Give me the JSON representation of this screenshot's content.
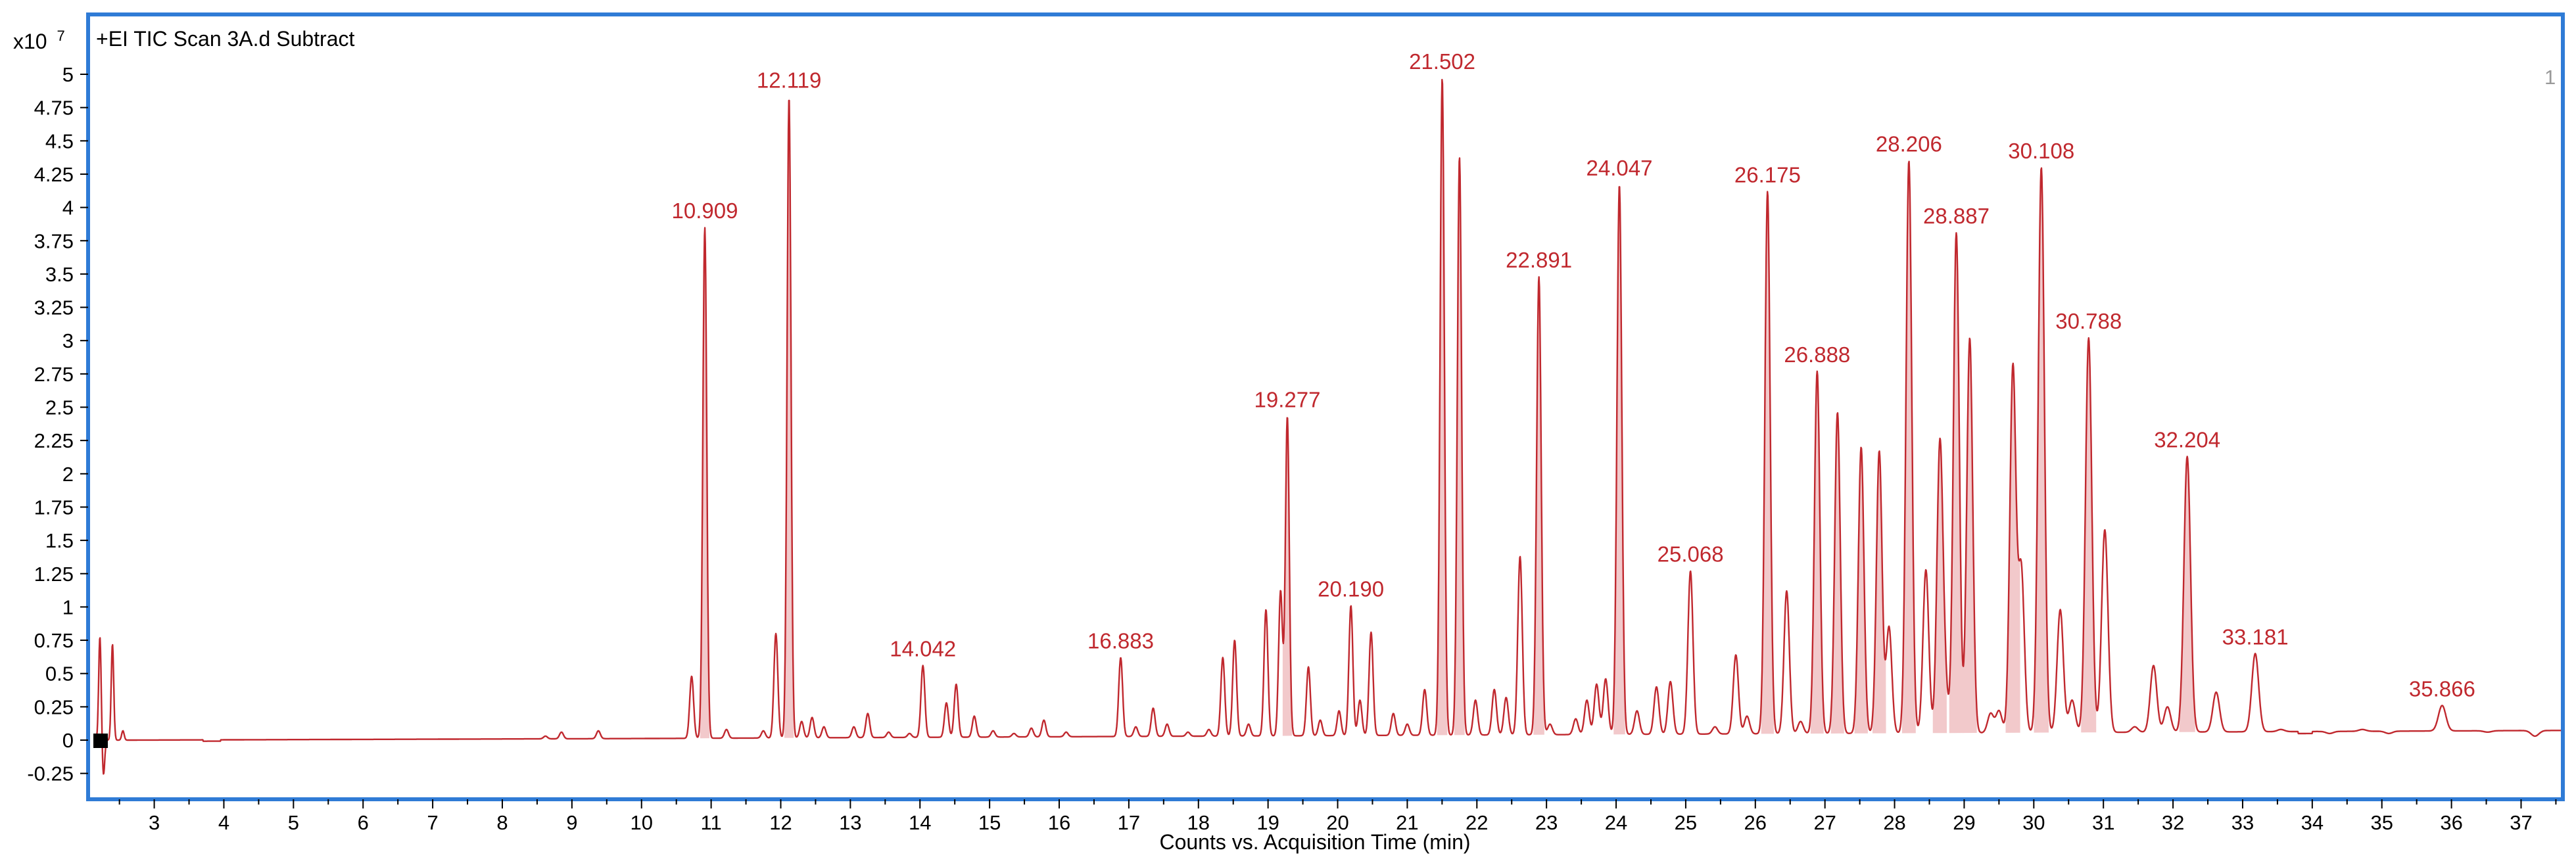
{
  "chart_data": {
    "type": "line",
    "title": "+EI TIC Scan 3A.d  Subtract",
    "xlabel": "Counts vs. Acquisition Time (min)",
    "ylabel_multiplier": "x10",
    "ylabel_exponent": "7",
    "panel_number": "1",
    "xlim": [
      2.05,
      37.6
    ],
    "ylim": [
      -0.3,
      5.1
    ],
    "x_ticks": [
      "3",
      "4",
      "5",
      "6",
      "7",
      "8",
      "9",
      "10",
      "11",
      "12",
      "13",
      "14",
      "15",
      "16",
      "17",
      "18",
      "19",
      "20",
      "21",
      "22",
      "23",
      "24",
      "25",
      "26",
      "27",
      "28",
      "29",
      "30",
      "31",
      "32",
      "33",
      "34",
      "35",
      "36",
      "37"
    ],
    "y_ticks": [
      "5",
      "4.75",
      "4.5",
      "4.25",
      "4",
      "3.75",
      "3.5",
      "3.25",
      "3",
      "2.75",
      "2.5",
      "2.25",
      "2",
      "1.75",
      "1.5",
      "1.25",
      "1",
      "0.75",
      "0.5",
      "0.25",
      "0",
      "-0.25"
    ],
    "colors": {
      "trace": "#c0282e",
      "fill": "#f2c9cb",
      "frame": "#2f7bd6"
    },
    "peak_labels": [
      {
        "x": 10.909,
        "y": 3.85,
        "text": "10.909"
      },
      {
        "x": 12.119,
        "y": 4.83,
        "text": "12.119"
      },
      {
        "x": 14.042,
        "y": 0.56,
        "text": "14.042"
      },
      {
        "x": 16.883,
        "y": 0.62,
        "text": "16.883"
      },
      {
        "x": 19.277,
        "y": 2.43,
        "text": "19.277"
      },
      {
        "x": 20.19,
        "y": 1.01,
        "text": "20.190"
      },
      {
        "x": 21.502,
        "y": 4.97,
        "text": "21.502"
      },
      {
        "x": 22.891,
        "y": 3.48,
        "text": "22.891"
      },
      {
        "x": 24.047,
        "y": 4.17,
        "text": "24.047"
      },
      {
        "x": 25.068,
        "y": 1.27,
        "text": "25.068"
      },
      {
        "x": 26.175,
        "y": 4.12,
        "text": "26.175"
      },
      {
        "x": 26.888,
        "y": 2.77,
        "text": "26.888"
      },
      {
        "x": 28.206,
        "y": 4.35,
        "text": "28.206"
      },
      {
        "x": 28.887,
        "y": 3.81,
        "text": "28.887"
      },
      {
        "x": 30.108,
        "y": 4.3,
        "text": "30.108"
      },
      {
        "x": 30.788,
        "y": 3.02,
        "text": "30.788"
      },
      {
        "x": 32.204,
        "y": 2.13,
        "text": "32.204"
      },
      {
        "x": 33.181,
        "y": 0.65,
        "text": "33.181"
      },
      {
        "x": 35.866,
        "y": 0.26,
        "text": "35.866"
      }
    ],
    "peaks": [
      {
        "x": 2.22,
        "y": 0.78
      },
      {
        "x": 2.27,
        "y": -0.27
      },
      {
        "x": 2.4,
        "y": 0.72
      },
      {
        "x": 2.55,
        "y": 0.07
      },
      {
        "x": 8.62,
        "y": 0.03
      },
      {
        "x": 8.85,
        "y": 0.06
      },
      {
        "x": 9.38,
        "y": 0.07
      },
      {
        "x": 10.72,
        "y": 0.48
      },
      {
        "x": 10.909,
        "y": 3.85
      },
      {
        "x": 11.22,
        "y": 0.08
      },
      {
        "x": 11.75,
        "y": 0.07
      },
      {
        "x": 11.93,
        "y": 0.8
      },
      {
        "x": 12.119,
        "y": 4.83
      },
      {
        "x": 12.3,
        "y": 0.14
      },
      {
        "x": 12.45,
        "y": 0.17
      },
      {
        "x": 12.62,
        "y": 0.1
      },
      {
        "x": 13.05,
        "y": 0.1
      },
      {
        "x": 13.25,
        "y": 0.2
      },
      {
        "x": 13.55,
        "y": 0.06
      },
      {
        "x": 13.85,
        "y": 0.05
      },
      {
        "x": 14.042,
        "y": 0.56
      },
      {
        "x": 14.38,
        "y": 0.28
      },
      {
        "x": 14.52,
        "y": 0.42
      },
      {
        "x": 14.78,
        "y": 0.18
      },
      {
        "x": 15.05,
        "y": 0.07
      },
      {
        "x": 15.35,
        "y": 0.05
      },
      {
        "x": 15.6,
        "y": 0.09
      },
      {
        "x": 15.78,
        "y": 0.15
      },
      {
        "x": 16.1,
        "y": 0.06
      },
      {
        "x": 16.883,
        "y": 0.62
      },
      {
        "x": 17.1,
        "y": 0.1
      },
      {
        "x": 17.35,
        "y": 0.24
      },
      {
        "x": 17.55,
        "y": 0.12
      },
      {
        "x": 17.85,
        "y": 0.06
      },
      {
        "x": 18.15,
        "y": 0.08
      },
      {
        "x": 18.35,
        "y": 0.62
      },
      {
        "x": 18.52,
        "y": 0.75
      },
      {
        "x": 18.72,
        "y": 0.12
      },
      {
        "x": 18.97,
        "y": 0.98
      },
      {
        "x": 19.18,
        "y": 1.12
      },
      {
        "x": 19.277,
        "y": 2.43
      },
      {
        "x": 19.58,
        "y": 0.55
      },
      {
        "x": 19.75,
        "y": 0.15
      },
      {
        "x": 20.02,
        "y": 0.22
      },
      {
        "x": 20.19,
        "y": 1.01
      },
      {
        "x": 20.32,
        "y": 0.3
      },
      {
        "x": 20.48,
        "y": 0.81
      },
      {
        "x": 20.8,
        "y": 0.2
      },
      {
        "x": 21.0,
        "y": 0.12
      },
      {
        "x": 21.25,
        "y": 0.38
      },
      {
        "x": 21.502,
        "y": 4.97
      },
      {
        "x": 21.75,
        "y": 4.38
      },
      {
        "x": 21.98,
        "y": 0.3
      },
      {
        "x": 22.25,
        "y": 0.38
      },
      {
        "x": 22.42,
        "y": 0.32
      },
      {
        "x": 22.62,
        "y": 1.38
      },
      {
        "x": 22.891,
        "y": 3.48
      },
      {
        "x": 23.05,
        "y": 0.12
      },
      {
        "x": 23.42,
        "y": 0.16
      },
      {
        "x": 23.58,
        "y": 0.3
      },
      {
        "x": 23.72,
        "y": 0.42
      },
      {
        "x": 23.85,
        "y": 0.46
      },
      {
        "x": 24.047,
        "y": 4.17
      },
      {
        "x": 24.3,
        "y": 0.22
      },
      {
        "x": 24.58,
        "y": 0.4
      },
      {
        "x": 24.78,
        "y": 0.44
      },
      {
        "x": 25.068,
        "y": 1.27
      },
      {
        "x": 25.42,
        "y": 0.1
      },
      {
        "x": 25.72,
        "y": 0.64
      },
      {
        "x": 25.88,
        "y": 0.18
      },
      {
        "x": 26.175,
        "y": 4.12
      },
      {
        "x": 26.45,
        "y": 1.12
      },
      {
        "x": 26.65,
        "y": 0.14
      },
      {
        "x": 26.888,
        "y": 2.77
      },
      {
        "x": 27.18,
        "y": 2.46
      },
      {
        "x": 27.52,
        "y": 2.2
      },
      {
        "x": 27.78,
        "y": 2.17
      },
      {
        "x": 27.92,
        "y": 0.85
      },
      {
        "x": 28.206,
        "y": 4.35
      },
      {
        "x": 28.45,
        "y": 1.28
      },
      {
        "x": 28.65,
        "y": 2.17
      },
      {
        "x": 28.72,
        "y": 0.42
      },
      {
        "x": 28.887,
        "y": 3.81
      },
      {
        "x": 29.08,
        "y": 3.02
      },
      {
        "x": 29.38,
        "y": 0.2
      },
      {
        "x": 29.5,
        "y": 0.22
      },
      {
        "x": 29.7,
        "y": 2.8
      },
      {
        "x": 29.82,
        "y": 1.28
      },
      {
        "x": 30.108,
        "y": 4.3
      },
      {
        "x": 30.38,
        "y": 0.98
      },
      {
        "x": 30.55,
        "y": 0.3
      },
      {
        "x": 30.788,
        "y": 3.02
      },
      {
        "x": 31.02,
        "y": 1.58
      },
      {
        "x": 31.45,
        "y": 0.1
      },
      {
        "x": 31.72,
        "y": 0.56
      },
      {
        "x": 31.92,
        "y": 0.25
      },
      {
        "x": 32.204,
        "y": 2.13
      },
      {
        "x": 32.62,
        "y": 0.36
      },
      {
        "x": 33.181,
        "y": 0.65
      },
      {
        "x": 33.55,
        "y": 0.08
      },
      {
        "x": 34.25,
        "y": 0.05
      },
      {
        "x": 34.72,
        "y": 0.08
      },
      {
        "x": 35.1,
        "y": 0.05
      },
      {
        "x": 35.866,
        "y": 0.26
      },
      {
        "x": 36.52,
        "y": 0.06
      },
      {
        "x": 37.2,
        "y": 0.03
      }
    ]
  }
}
